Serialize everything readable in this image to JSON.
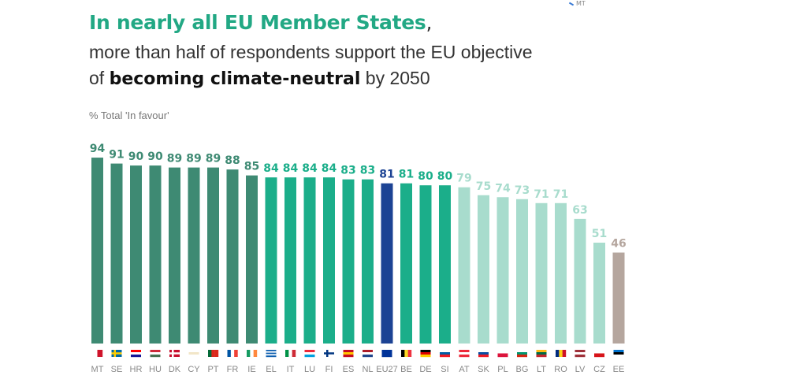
{
  "corner_label": "MT",
  "chart_data": {
    "type": "bar",
    "title_highlight": "In nearly all EU Member States",
    "title_comma": ",",
    "subtitle_line1": "more than half of respondents support the EU objective",
    "subtitle_line2_pre": "of ",
    "subtitle_line2_bold": "becoming climate-neutral",
    "subtitle_line2_post": " by 2050",
    "unit_label": "% Total 'In favour'",
    "ylim": [
      0,
      100
    ],
    "grid": false,
    "categories": [
      "MT",
      "SE",
      "HR",
      "HU",
      "DK",
      "CY",
      "PT",
      "FR",
      "IE",
      "EL",
      "IT",
      "LU",
      "FI",
      "ES",
      "NL",
      "EU27",
      "BE",
      "DE",
      "SI",
      "AT",
      "SK",
      "PL",
      "BG",
      "LT",
      "RO",
      "LV",
      "CZ",
      "EE"
    ],
    "values": [
      94,
      91,
      90,
      90,
      89,
      89,
      89,
      88,
      85,
      84,
      84,
      84,
      84,
      83,
      83,
      81,
      81,
      80,
      80,
      79,
      75,
      74,
      73,
      71,
      71,
      63,
      51,
      46
    ],
    "colors": {
      "high": "#3e8a73",
      "mid": "#1bae8a",
      "eu": "#1c4394",
      "low": "#a8dccd",
      "lowest": "#b5a69e",
      "title": "#22a884"
    },
    "flags": {
      "MT": [
        "v",
        "#ffffff",
        "#cf142b"
      ],
      "SE": [
        "nordic",
        "#006aa7",
        "#fecc00"
      ],
      "HR": [
        "h",
        "#ff0000",
        "#ffffff",
        "#171796"
      ],
      "HU": [
        "h",
        "#ce2939",
        "#ffffff",
        "#477050"
      ],
      "DK": [
        "nordic",
        "#c8102e",
        "#ffffff"
      ],
      "CY": [
        "h",
        "#ffffff",
        "#f2e6c8",
        "#ffffff"
      ],
      "PT": [
        "v",
        "#046a38",
        "#da291c",
        "#da291c"
      ],
      "FR": [
        "v",
        "#0055a4",
        "#ffffff",
        "#ef4135"
      ],
      "IE": [
        "v",
        "#169b62",
        "#ffffff",
        "#ff883e"
      ],
      "EL": [
        "h",
        "#0d5eaf",
        "#ffffff",
        "#0d5eaf",
        "#ffffff",
        "#0d5eaf"
      ],
      "IT": [
        "v",
        "#009246",
        "#ffffff",
        "#ce2b37"
      ],
      "LU": [
        "h",
        "#ed2939",
        "#ffffff",
        "#00a1de"
      ],
      "FI": [
        "nordic",
        "#ffffff",
        "#003580"
      ],
      "ES": [
        "h",
        "#c60b1e",
        "#ffc400",
        "#c60b1e"
      ],
      "NL": [
        "h",
        "#ae1c28",
        "#ffffff",
        "#21468b"
      ],
      "EU27": [
        "h",
        "#003399",
        "#003399"
      ],
      "BE": [
        "v",
        "#000000",
        "#fdda24",
        "#ef3340"
      ],
      "DE": [
        "h",
        "#000000",
        "#dd0000",
        "#ffce00"
      ],
      "SI": [
        "h",
        "#ffffff",
        "#005da4",
        "#ed1c24"
      ],
      "AT": [
        "h",
        "#ed2939",
        "#ffffff",
        "#ed2939"
      ],
      "SK": [
        "h",
        "#ffffff",
        "#0b4ea2",
        "#ee1c25"
      ],
      "PL": [
        "h",
        "#ffffff",
        "#dc143c"
      ],
      "BG": [
        "h",
        "#ffffff",
        "#00966e",
        "#d62612"
      ],
      "LT": [
        "h",
        "#fdb913",
        "#006a44",
        "#c1272d"
      ],
      "RO": [
        "v",
        "#002b7f",
        "#fcd116",
        "#ce1126"
      ],
      "LV": [
        "h",
        "#9e3039",
        "#ffffff",
        "#9e3039"
      ],
      "CZ": [
        "h",
        "#ffffff",
        "#d7141a"
      ],
      "EE": [
        "h",
        "#0072ce",
        "#000000",
        "#ffffff"
      ]
    }
  }
}
